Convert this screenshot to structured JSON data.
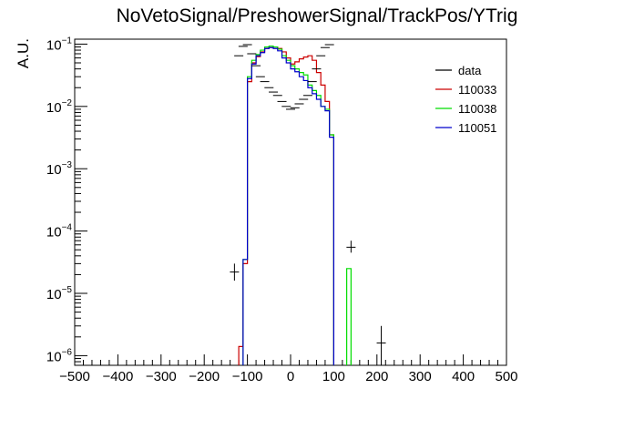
{
  "chart_data": {
    "type": "histogram",
    "title": "NoVetoSignal/PreshowerSignal/TrackPos/YTrig",
    "xlabel": "",
    "ylabel": "A.U.",
    "xlim": [
      -500,
      500
    ],
    "ylim": [
      7e-07,
      0.12
    ],
    "yscale": "log",
    "xticks": [
      "−500",
      "−400",
      "−300",
      "−200",
      "−100",
      "0",
      "100",
      "200",
      "300",
      "400",
      "500"
    ],
    "yticks": [
      {
        "base": "10",
        "exp": "−1",
        "value": 0.1
      },
      {
        "base": "10",
        "exp": "−2",
        "value": 0.01
      },
      {
        "base": "10",
        "exp": "−3",
        "value": 0.001
      },
      {
        "base": "10",
        "exp": "−4",
        "value": 0.0001
      },
      {
        "base": "10",
        "exp": "−5",
        "value": 1e-05
      },
      {
        "base": "10",
        "exp": "−6",
        "value": 1e-06
      }
    ],
    "legend_position": "top-right",
    "data": {
      "name": "data",
      "color": "#000000",
      "points": [
        {
          "x": -130,
          "y": 2.2e-05,
          "ylo": 1.6e-05,
          "yhi": 3e-05
        },
        {
          "x": -120,
          "y": 0.065
        },
        {
          "x": -110,
          "y": 0.092
        },
        {
          "x": -100,
          "y": 0.098
        },
        {
          "x": -90,
          "y": 0.07
        },
        {
          "x": -80,
          "y": 0.045
        },
        {
          "x": -70,
          "y": 0.03
        },
        {
          "x": -60,
          "y": 0.025
        },
        {
          "x": -50,
          "y": 0.02
        },
        {
          "x": -40,
          "y": 0.017
        },
        {
          "x": -30,
          "y": 0.015
        },
        {
          "x": -20,
          "y": 0.012
        },
        {
          "x": -10,
          "y": 0.01
        },
        {
          "x": 0,
          "y": 0.009
        },
        {
          "x": 10,
          "y": 0.0095
        },
        {
          "x": 20,
          "y": 0.011
        },
        {
          "x": 30,
          "y": 0.013
        },
        {
          "x": 40,
          "y": 0.015
        },
        {
          "x": 50,
          "y": 0.025
        },
        {
          "x": 60,
          "y": 0.04
        },
        {
          "x": 70,
          "y": 0.065
        },
        {
          "x": 80,
          "y": 0.088
        },
        {
          "x": 90,
          "y": 0.098
        },
        {
          "x": 140,
          "y": 5.5e-05,
          "ylo": 4.5e-05,
          "yhi": 7e-05
        },
        {
          "x": 210,
          "y": 1.6e-06,
          "ylo": 7e-07,
          "yhi": 3e-06
        }
      ]
    },
    "series": [
      {
        "name": "110033",
        "color": "#cc0000",
        "bins": [
          {
            "x0": -120,
            "x1": -110,
            "y": 1.4e-06
          },
          {
            "x0": -110,
            "x1": -100,
            "y": 3e-05
          },
          {
            "x0": -100,
            "x1": -90,
            "y": 0.025
          },
          {
            "x0": -90,
            "x1": -80,
            "y": 0.05
          },
          {
            "x0": -80,
            "x1": -70,
            "y": 0.063
          },
          {
            "x0": -70,
            "x1": -60,
            "y": 0.075
          },
          {
            "x0": -60,
            "x1": -50,
            "y": 0.085
          },
          {
            "x0": -50,
            "x1": -40,
            "y": 0.088
          },
          {
            "x0": -40,
            "x1": -30,
            "y": 0.09
          },
          {
            "x0": -30,
            "x1": -20,
            "y": 0.085
          },
          {
            "x0": -20,
            "x1": -10,
            "y": 0.075
          },
          {
            "x0": -10,
            "x1": 0,
            "y": 0.06
          },
          {
            "x0": 0,
            "x1": 10,
            "y": 0.048
          },
          {
            "x0": 10,
            "x1": 20,
            "y": 0.052
          },
          {
            "x0": 20,
            "x1": 30,
            "y": 0.058
          },
          {
            "x0": 30,
            "x1": 40,
            "y": 0.062
          },
          {
            "x0": 40,
            "x1": 50,
            "y": 0.065
          },
          {
            "x0": 50,
            "x1": 60,
            "y": 0.055
          },
          {
            "x0": 60,
            "x1": 70,
            "y": 0.035
          },
          {
            "x0": 70,
            "x1": 80,
            "y": 0.022
          },
          {
            "x0": 80,
            "x1": 90,
            "y": 0.012
          },
          {
            "x0": 90,
            "x1": 100,
            "y": 0.0035
          }
        ]
      },
      {
        "name": "110038",
        "color": "#00dd00",
        "bins": [
          {
            "x0": -110,
            "x1": -100,
            "y": 3.5e-05
          },
          {
            "x0": -100,
            "x1": -90,
            "y": 0.03
          },
          {
            "x0": -90,
            "x1": -80,
            "y": 0.055
          },
          {
            "x0": -80,
            "x1": -70,
            "y": 0.068
          },
          {
            "x0": -70,
            "x1": -60,
            "y": 0.08
          },
          {
            "x0": -60,
            "x1": -50,
            "y": 0.09
          },
          {
            "x0": -50,
            "x1": -40,
            "y": 0.093
          },
          {
            "x0": -40,
            "x1": -30,
            "y": 0.09
          },
          {
            "x0": -30,
            "x1": -20,
            "y": 0.083
          },
          {
            "x0": -20,
            "x1": -10,
            "y": 0.065
          },
          {
            "x0": -10,
            "x1": 0,
            "y": 0.055
          },
          {
            "x0": 0,
            "x1": 10,
            "y": 0.045
          },
          {
            "x0": 10,
            "x1": 20,
            "y": 0.04
          },
          {
            "x0": 20,
            "x1": 30,
            "y": 0.035
          },
          {
            "x0": 30,
            "x1": 40,
            "y": 0.032
          },
          {
            "x0": 40,
            "x1": 50,
            "y": 0.022
          },
          {
            "x0": 50,
            "x1": 60,
            "y": 0.018
          },
          {
            "x0": 60,
            "x1": 70,
            "y": 0.015
          },
          {
            "x0": 70,
            "x1": 80,
            "y": 0.01
          },
          {
            "x0": 80,
            "x1": 90,
            "y": 0.009
          },
          {
            "x0": 90,
            "x1": 100,
            "y": 0.0035
          },
          {
            "x0": 130,
            "x1": 140,
            "y": 2.5e-05
          }
        ]
      },
      {
        "name": "110051",
        "color": "#0000cc",
        "bins": [
          {
            "x0": -110,
            "x1": -100,
            "y": 3.5e-05
          },
          {
            "x0": -100,
            "x1": -90,
            "y": 0.028
          },
          {
            "x0": -90,
            "x1": -80,
            "y": 0.048
          },
          {
            "x0": -80,
            "x1": -70,
            "y": 0.065
          },
          {
            "x0": -70,
            "x1": -60,
            "y": 0.073
          },
          {
            "x0": -60,
            "x1": -50,
            "y": 0.085
          },
          {
            "x0": -50,
            "x1": -40,
            "y": 0.088
          },
          {
            "x0": -40,
            "x1": -30,
            "y": 0.085
          },
          {
            "x0": -30,
            "x1": -20,
            "y": 0.078
          },
          {
            "x0": -20,
            "x1": -10,
            "y": 0.06
          },
          {
            "x0": -10,
            "x1": 0,
            "y": 0.05
          },
          {
            "x0": 0,
            "x1": 10,
            "y": 0.04
          },
          {
            "x0": 10,
            "x1": 20,
            "y": 0.036
          },
          {
            "x0": 20,
            "x1": 30,
            "y": 0.03
          },
          {
            "x0": 30,
            "x1": 40,
            "y": 0.026
          },
          {
            "x0": 40,
            "x1": 50,
            "y": 0.02
          },
          {
            "x0": 50,
            "x1": 60,
            "y": 0.016
          },
          {
            "x0": 60,
            "x1": 70,
            "y": 0.013
          },
          {
            "x0": 70,
            "x1": 80,
            "y": 0.01
          },
          {
            "x0": 80,
            "x1": 90,
            "y": 0.0085
          },
          {
            "x0": 90,
            "x1": 100,
            "y": 0.0032
          }
        ]
      }
    ]
  }
}
